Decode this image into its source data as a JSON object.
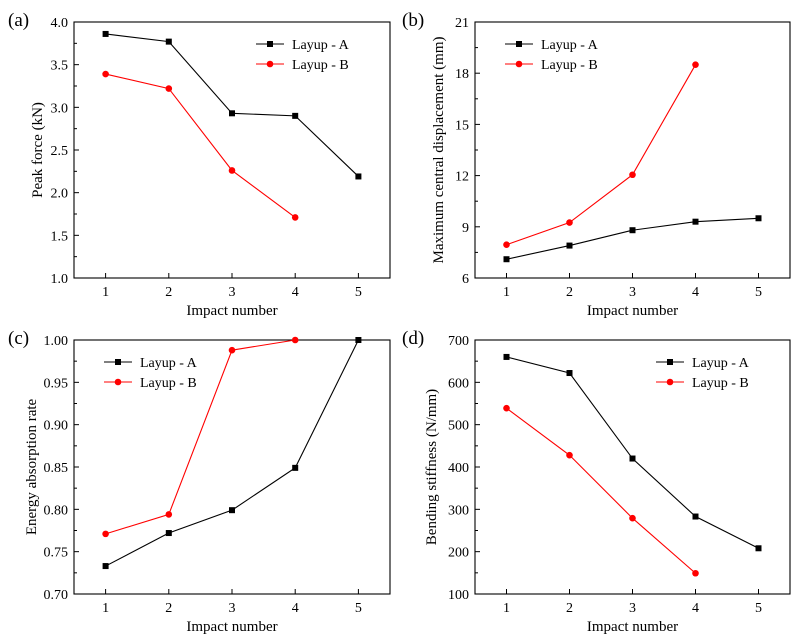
{
  "chart_data": [
    {
      "type": "line",
      "panel_label": "(a)",
      "xlabel": "Impact number",
      "ylabel": "Peak force (kN)",
      "x": [
        1,
        2,
        3,
        4,
        5
      ],
      "xticks": [
        1,
        2,
        3,
        4,
        5
      ],
      "xlim": [
        0.5,
        5.5
      ],
      "ylim": [
        1.0,
        4.0
      ],
      "yticks": [
        1.0,
        1.5,
        2.0,
        2.5,
        3.0,
        3.5,
        4.0
      ],
      "ytick_labels": [
        "1.0",
        "1.5",
        "2.0",
        "2.5",
        "3.0",
        "3.5",
        "4.0"
      ],
      "legend_position": "top-right",
      "series": [
        {
          "name": "Layup - A",
          "color": "#000000",
          "marker": "square",
          "values": [
            3.86,
            3.77,
            2.93,
            2.9,
            2.19
          ]
        },
        {
          "name": "Layup - B",
          "color": "#ff0000",
          "marker": "circle",
          "values": [
            3.39,
            3.22,
            2.26,
            1.71,
            null
          ]
        }
      ]
    },
    {
      "type": "line",
      "panel_label": "(b)",
      "xlabel": "Impact number",
      "ylabel": "Maximum central displacement (mm)",
      "x": [
        1,
        2,
        3,
        4,
        5
      ],
      "xticks": [
        1,
        2,
        3,
        4,
        5
      ],
      "xlim": [
        0.5,
        5.5
      ],
      "ylim": [
        6,
        21
      ],
      "yticks": [
        6,
        9,
        12,
        15,
        18,
        21
      ],
      "ytick_labels": [
        "6",
        "9",
        "12",
        "15",
        "18",
        "21"
      ],
      "legend_position": "top-left",
      "series": [
        {
          "name": "Layup - A",
          "color": "#000000",
          "marker": "square",
          "values": [
            7.1,
            7.9,
            8.8,
            9.3,
            9.5
          ]
        },
        {
          "name": "Layup - B",
          "color": "#ff0000",
          "marker": "circle",
          "values": [
            7.95,
            9.25,
            12.05,
            18.5,
            null
          ]
        }
      ]
    },
    {
      "type": "line",
      "panel_label": "(c)",
      "xlabel": "Impact number",
      "ylabel": "Energy absorption rate",
      "x": [
        1,
        2,
        3,
        4,
        5
      ],
      "xticks": [
        1,
        2,
        3,
        4,
        5
      ],
      "xlim": [
        0.5,
        5.5
      ],
      "ylim": [
        0.7,
        1.0
      ],
      "yticks": [
        0.7,
        0.75,
        0.8,
        0.85,
        0.9,
        0.95,
        1.0
      ],
      "ytick_labels": [
        "0.70",
        "0.75",
        "0.80",
        "0.85",
        "0.90",
        "0.95",
        "1.00"
      ],
      "legend_position": "top-left",
      "series": [
        {
          "name": "Layup - A",
          "color": "#000000",
          "marker": "square",
          "values": [
            0.733,
            0.772,
            0.799,
            0.849,
            1.0
          ]
        },
        {
          "name": "Layup - B",
          "color": "#ff0000",
          "marker": "circle",
          "values": [
            0.771,
            0.794,
            0.988,
            1.0,
            null
          ]
        }
      ]
    },
    {
      "type": "line",
      "panel_label": "(d)",
      "xlabel": "Impact number",
      "ylabel": "Bending stiffness (N/mm)",
      "x": [
        1,
        2,
        3,
        4,
        5
      ],
      "xticks": [
        1,
        2,
        3,
        4,
        5
      ],
      "xlim": [
        0.5,
        5.5
      ],
      "ylim": [
        100,
        700
      ],
      "yticks": [
        100,
        200,
        300,
        400,
        500,
        600,
        700
      ],
      "ytick_labels": [
        "100",
        "200",
        "300",
        "400",
        "500",
        "600",
        "700"
      ],
      "legend_position": "top-right",
      "series": [
        {
          "name": "Layup - A",
          "color": "#000000",
          "marker": "square",
          "values": [
            660,
            622,
            420,
            283,
            208
          ]
        },
        {
          "name": "Layup - B",
          "color": "#ff0000",
          "marker": "circle",
          "values": [
            539,
            428,
            279,
            149,
            null
          ]
        }
      ]
    }
  ]
}
